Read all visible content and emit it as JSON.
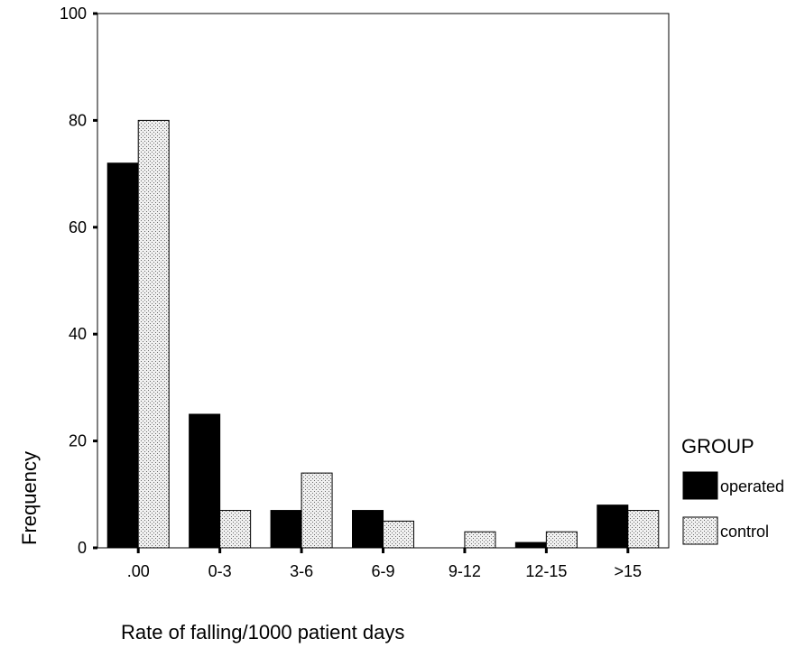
{
  "chart_data": {
    "type": "bar",
    "title": "",
    "xlabel": "Rate of falling/1000 patient days",
    "ylabel": "Frequency",
    "categories": [
      ".00",
      "0-3",
      "3-6",
      "6-9",
      "9-12",
      "12-15",
      ">15"
    ],
    "series": [
      {
        "name": "operated",
        "values": [
          72,
          25,
          7,
          7,
          0,
          1,
          8
        ],
        "color": "#000000",
        "fill": "solid"
      },
      {
        "name": "control",
        "values": [
          80,
          7,
          14,
          5,
          3,
          3,
          7
        ],
        "color": "#d9d9d9",
        "fill": "dotted"
      }
    ],
    "ylim": [
      0,
      100
    ],
    "yticks": [
      0,
      20,
      40,
      60,
      80,
      100
    ],
    "grid": false,
    "legend": {
      "title": "GROUP",
      "position": "right"
    }
  }
}
